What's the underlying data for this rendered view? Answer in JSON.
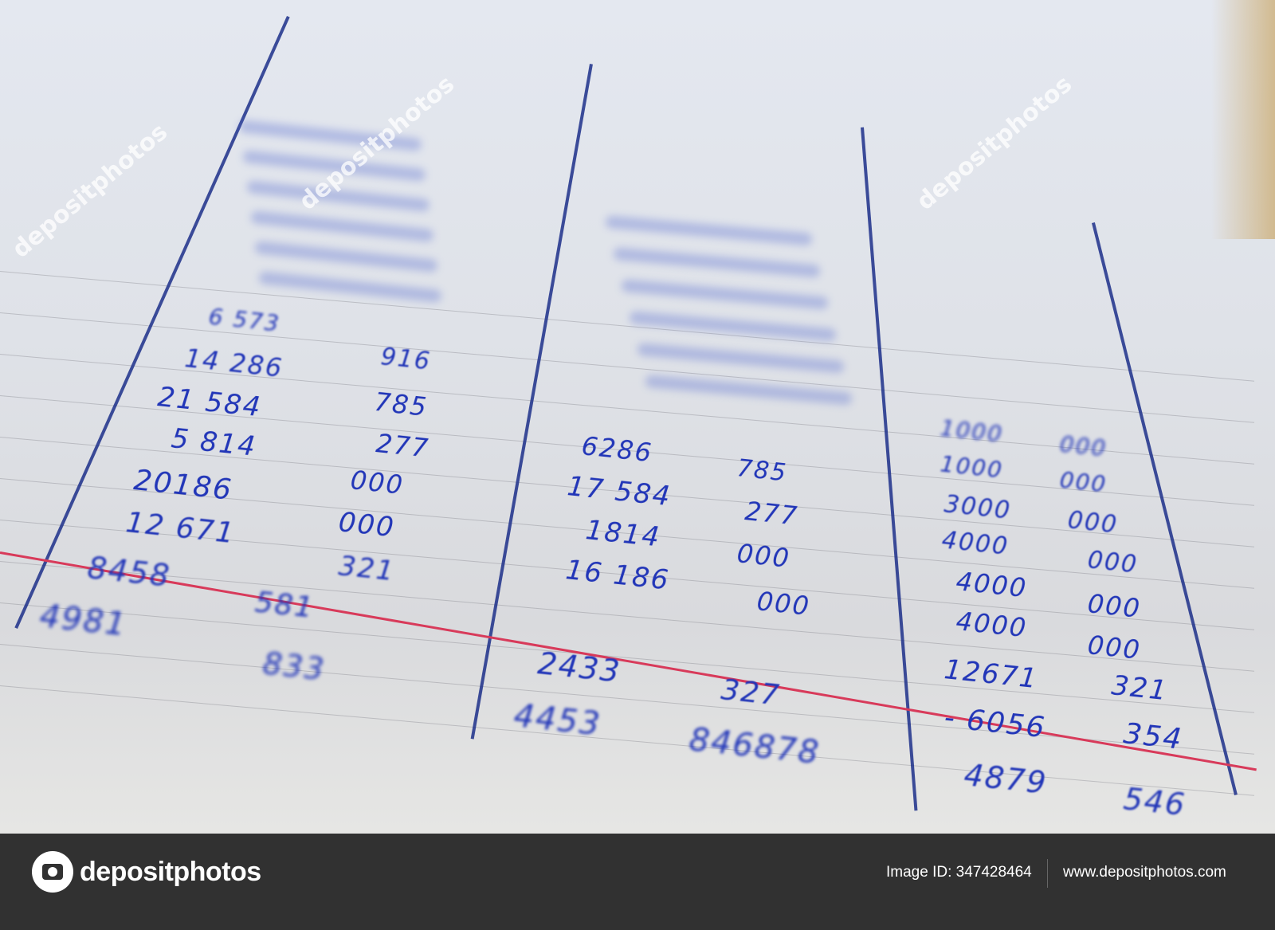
{
  "ledger": {
    "ink_color": "#2236b8",
    "line_color": "#1c2f8a",
    "red_rule_color": "#d83a5a",
    "entries": [
      "6 573",
      "14 286",
      "21 584",
      "5 814",
      "20186",
      "12 671",
      "8458",
      "4981",
      "916",
      "785",
      "277",
      "000",
      "000",
      "321",
      "581",
      "833",
      "6286",
      "17 584",
      "1814",
      "16 186",
      "2433",
      "4453",
      "785",
      "277",
      "000",
      "000",
      "327",
      "846878",
      "1000",
      "1000",
      "3000",
      "4000",
      "4000",
      "4000",
      "12671",
      "- 6056",
      "4879",
      "000",
      "000",
      "000",
      "000",
      "000",
      "000",
      "321",
      "354",
      "546"
    ]
  },
  "watermark": "depositphotos",
  "footer": {
    "logo_text": "depositphotos",
    "image_id": "Image ID: 347428464",
    "website": "www.depositphotos.com",
    "background_color": "#313131"
  }
}
